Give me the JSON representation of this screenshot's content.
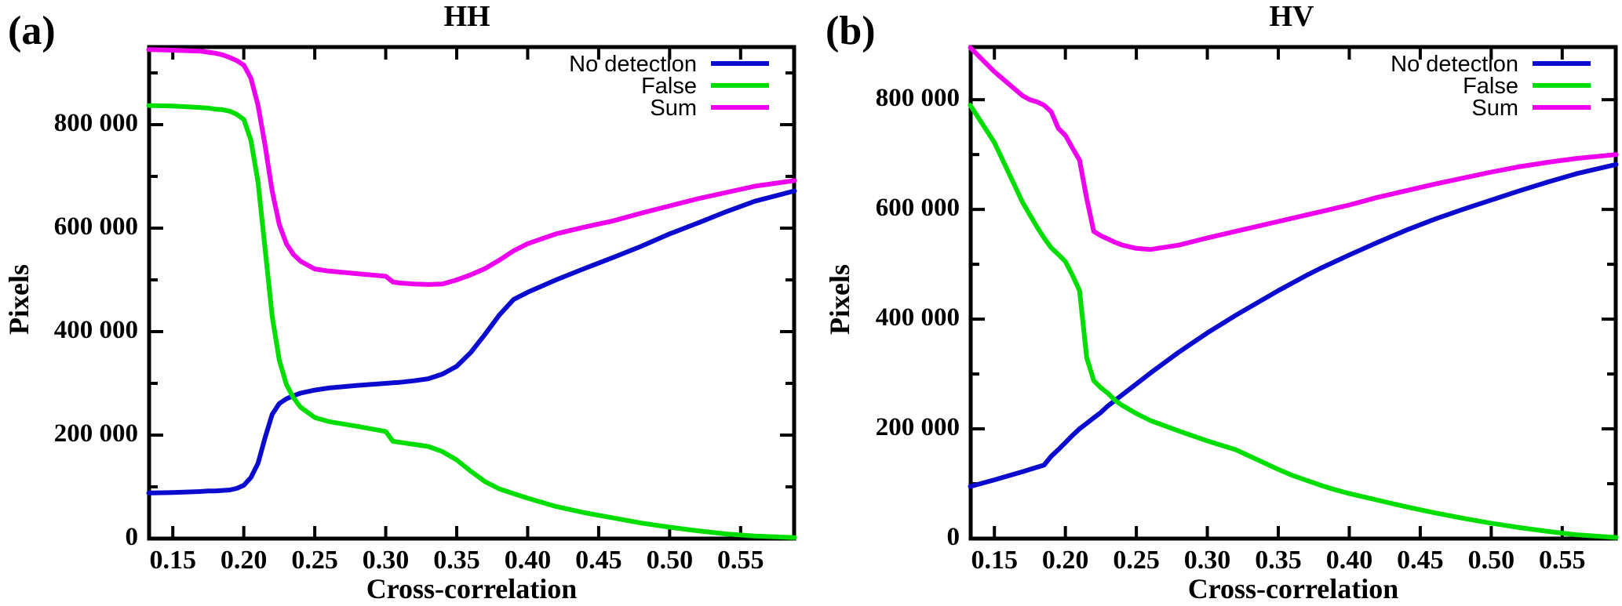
{
  "figure": {
    "panels": [
      "(a)",
      "(b)"
    ]
  },
  "chart_data": [
    {
      "type": "line",
      "panel": "(a)",
      "title": "HH",
      "xlabel": "Cross-correlation",
      "ylabel": "Pixels",
      "xlim": [
        0.1333,
        0.5877
      ],
      "ylim": [
        0,
        950000
      ],
      "grid": false,
      "legend_position": "top-right",
      "x_major_ticks": [
        0.15,
        0.2,
        0.25,
        0.3,
        0.35,
        0.4,
        0.45,
        0.5,
        0.55
      ],
      "x_tick_labels": [
        "0.15",
        "0.20",
        "0.25",
        "0.30",
        "0.35",
        "0.40",
        "0.45",
        "0.50",
        "0.55"
      ],
      "y_major_ticks": [
        0,
        200000,
        400000,
        600000,
        800000
      ],
      "y_tick_labels": [
        "0",
        "200 000",
        "400 000",
        "600 000",
        "800 000"
      ],
      "y_minor_ticks": [
        100000,
        300000,
        500000,
        700000,
        900000
      ],
      "x": [
        0.133,
        0.15,
        0.17,
        0.175,
        0.18,
        0.185,
        0.19,
        0.195,
        0.2,
        0.205,
        0.21,
        0.215,
        0.22,
        0.225,
        0.23,
        0.235,
        0.24,
        0.25,
        0.26,
        0.28,
        0.3,
        0.305,
        0.31,
        0.32,
        0.33,
        0.34,
        0.35,
        0.36,
        0.37,
        0.38,
        0.39,
        0.4,
        0.42,
        0.44,
        0.46,
        0.48,
        0.5,
        0.52,
        0.54,
        0.56,
        0.588
      ],
      "series": [
        {
          "name": "No detection",
          "color": "#0b0bd0",
          "y": [
            88000,
            89000,
            91000,
            92000,
            92000,
            93000,
            94000,
            97000,
            103000,
            118000,
            145000,
            195000,
            240000,
            261000,
            270000,
            276000,
            281000,
            287000,
            291000,
            296000,
            300000,
            301000,
            302000,
            305000,
            309000,
            318000,
            333000,
            360000,
            395000,
            432000,
            462000,
            476000,
            500000,
            522000,
            543000,
            565000,
            589000,
            610000,
            632000,
            652000,
            672000
          ]
        },
        {
          "name": "False",
          "color": "#00dd00",
          "y": [
            837000,
            836000,
            833000,
            832000,
            830000,
            829000,
            826000,
            820000,
            810000,
            770000,
            690000,
            560000,
            430000,
            345000,
            298000,
            272000,
            254000,
            234000,
            226000,
            217000,
            207000,
            188000,
            186000,
            182000,
            178000,
            168000,
            152000,
            130000,
            110000,
            96000,
            87000,
            78000,
            62000,
            50000,
            40000,
            30000,
            22000,
            15000,
            9000,
            5000,
            2000
          ]
        },
        {
          "name": "Sum",
          "color": "#ee00ee",
          "y": [
            945000,
            944000,
            942000,
            940000,
            938000,
            935000,
            930000,
            924000,
            915000,
            890000,
            838000,
            760000,
            672000,
            607000,
            570000,
            549000,
            536000,
            521000,
            517000,
            512000,
            507000,
            496000,
            494000,
            492000,
            491000,
            492000,
            500000,
            510000,
            522000,
            538000,
            556000,
            570000,
            589000,
            602000,
            614000,
            629000,
            643000,
            657000,
            669000,
            681000,
            692000
          ]
        }
      ]
    },
    {
      "type": "line",
      "panel": "(b)",
      "title": "HV",
      "xlabel": "Cross-correlation",
      "ylabel": "Pixels",
      "xlim": [
        0.1333,
        0.5877
      ],
      "ylim": [
        0,
        896000
      ],
      "grid": false,
      "legend_position": "top-right",
      "x_major_ticks": [
        0.15,
        0.2,
        0.25,
        0.3,
        0.35,
        0.4,
        0.45,
        0.5,
        0.55
      ],
      "x_tick_labels": [
        "0.15",
        "0.20",
        "0.25",
        "0.30",
        "0.35",
        "0.40",
        "0.45",
        "0.50",
        "0.55"
      ],
      "y_major_ticks": [
        0,
        200000,
        400000,
        600000,
        800000
      ],
      "y_tick_labels": [
        "0",
        "200 000",
        "400 000",
        "600 000",
        "800 000"
      ],
      "y_minor_ticks": [
        100000,
        300000,
        500000,
        700000
      ],
      "x": [
        0.133,
        0.15,
        0.17,
        0.175,
        0.18,
        0.185,
        0.19,
        0.195,
        0.2,
        0.205,
        0.21,
        0.215,
        0.22,
        0.225,
        0.23,
        0.235,
        0.24,
        0.25,
        0.26,
        0.28,
        0.3,
        0.305,
        0.31,
        0.32,
        0.33,
        0.34,
        0.35,
        0.36,
        0.37,
        0.38,
        0.39,
        0.4,
        0.42,
        0.44,
        0.46,
        0.48,
        0.5,
        0.52,
        0.54,
        0.56,
        0.588
      ],
      "series": [
        {
          "name": "No detection",
          "color": "#0b0bd0",
          "y": [
            95000,
            107000,
            122000,
            126000,
            130000,
            134000,
            150000,
            162000,
            175000,
            188000,
            200000,
            210000,
            220000,
            230000,
            242000,
            252000,
            262000,
            282000,
            302000,
            340000,
            375000,
            383000,
            391000,
            407000,
            422000,
            437000,
            452000,
            466000,
            480000,
            493000,
            505000,
            517000,
            540000,
            562000,
            582000,
            600000,
            617000,
            634000,
            650000,
            665000,
            682000
          ]
        },
        {
          "name": "False",
          "color": "#00dd00",
          "y": [
            790000,
            722000,
            612000,
            590000,
            568000,
            548000,
            530000,
            518000,
            505000,
            480000,
            452000,
            330000,
            288000,
            275000,
            265000,
            252000,
            243000,
            228000,
            215000,
            196000,
            178000,
            174000,
            170000,
            162000,
            150000,
            138000,
            126000,
            115000,
            106000,
            97000,
            89000,
            82000,
            70000,
            58000,
            47000,
            37000,
            28000,
            20000,
            13000,
            7000,
            2000
          ]
        },
        {
          "name": "Sum",
          "color": "#ee00ee",
          "y": [
            895000,
            851000,
            807000,
            800000,
            796000,
            790000,
            778000,
            748000,
            735000,
            712000,
            690000,
            620000,
            560000,
            552000,
            546000,
            540000,
            535000,
            529000,
            527000,
            535000,
            548000,
            551000,
            554000,
            560000,
            566000,
            572000,
            578000,
            584000,
            590000,
            596000,
            602000,
            608000,
            622000,
            634000,
            646000,
            657000,
            668000,
            678000,
            686000,
            693000,
            700000
          ]
        }
      ]
    }
  ]
}
